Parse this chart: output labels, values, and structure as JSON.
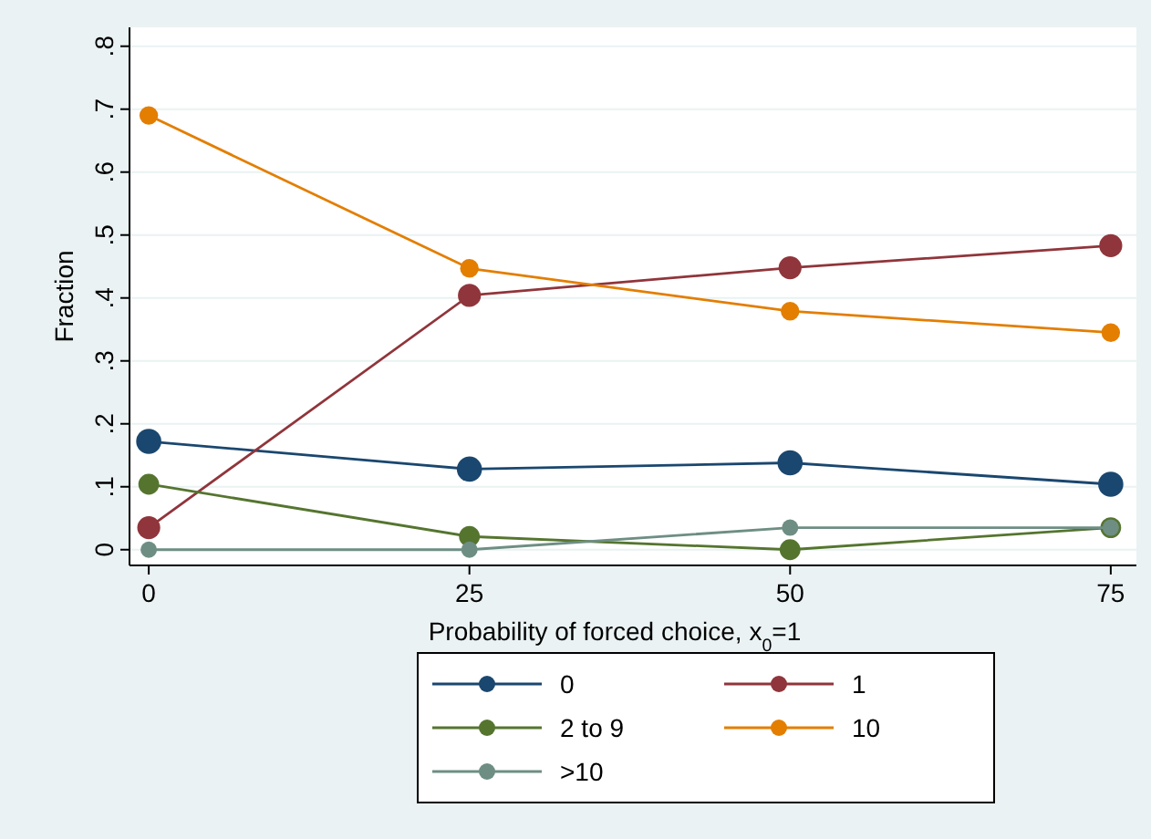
{
  "chart_data": {
    "type": "line",
    "xlabel": "Probability of forced choice, x$_{0}$=1",
    "ylabel": "Fraction",
    "x": [
      0,
      25,
      50,
      75
    ],
    "xlim": [
      -1.5,
      77
    ],
    "xticks": [
      0,
      25,
      50,
      75
    ],
    "ylim": [
      -0.025,
      0.83
    ],
    "yticks": [
      0,
      {
        "value": 0.1,
        "label": ".1"
      },
      {
        "value": 0.2,
        "label": ".2"
      },
      {
        "value": 0.3,
        "label": ".3"
      },
      {
        "value": 0.4,
        "label": ".4"
      },
      {
        "value": 0.5,
        "label": ".5"
      },
      {
        "value": 0.6,
        "label": ".6"
      },
      {
        "value": 0.7,
        "label": ".7"
      },
      {
        "value": 0.8,
        "label": ".8"
      }
    ],
    "grid": "y",
    "legend": "bottom",
    "marker": "circle",
    "line_style": "solid",
    "series": [
      {
        "name": "0",
        "color": "#1a476f",
        "values": [
          0.172,
          0.128,
          0.138,
          0.104
        ]
      },
      {
        "name": "1",
        "color": "#90353b",
        "values": [
          0.035,
          0.404,
          0.448,
          0.483
        ]
      },
      {
        "name": "2 to 9",
        "color": "#55752f",
        "values": [
          0.104,
          0.021,
          0,
          0.035
        ]
      },
      {
        "name": "10",
        "color": "#e37e00",
        "values": [
          0.69,
          0.447,
          0.379,
          0.345
        ]
      },
      {
        "name": ">10",
        "color": "#6e8e84",
        "values": [
          0,
          0,
          0.035,
          0.035
        ]
      }
    ]
  }
}
